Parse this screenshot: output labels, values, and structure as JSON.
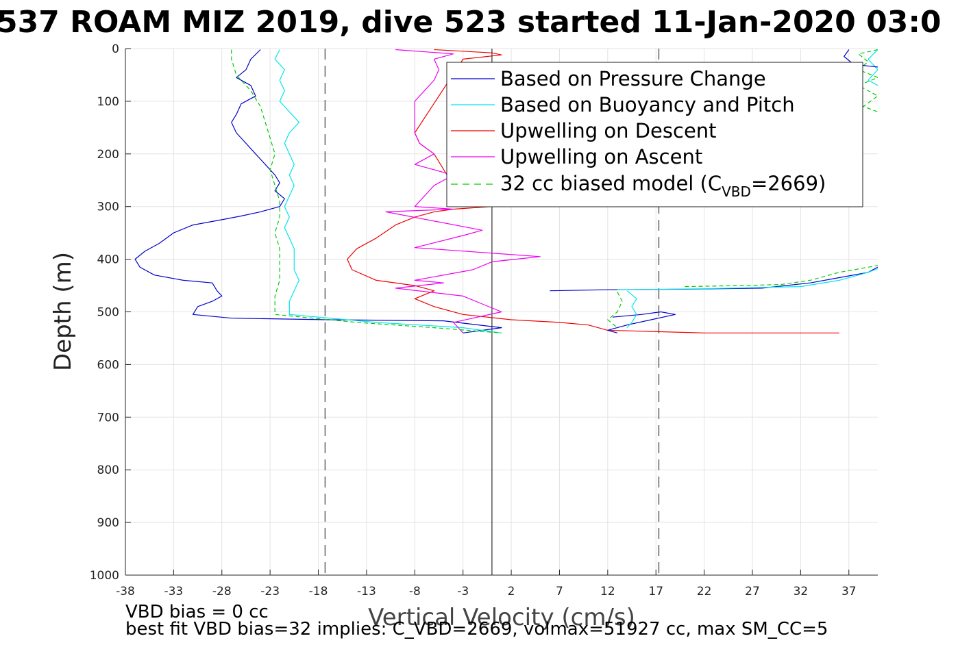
{
  "chart_data": {
    "type": "line",
    "title": "537 ROAM MIZ 2019, dive 523 started 11-Jan-2020 03:0",
    "xlabel": "Vertical Velocity (cm/s)",
    "ylabel": "Depth (m)",
    "xlim": [
      -38,
      40
    ],
    "ylim": [
      0,
      1000
    ],
    "y_reversed": true,
    "grid": true,
    "x_ticks": [
      -38,
      -33,
      -28,
      -23,
      -18,
      -13,
      -8,
      -3,
      2,
      7,
      12,
      17,
      22,
      27,
      32,
      37
    ],
    "y_ticks": [
      0,
      100,
      200,
      300,
      400,
      500,
      600,
      700,
      800,
      900,
      1000
    ],
    "reference_lines": {
      "dashed_x": [
        -17.3,
        17.3
      ],
      "solid_x": [
        0
      ]
    },
    "legend": {
      "position": "top-right",
      "entries": [
        {
          "label": "Based on Pressure Change",
          "color": "#0000cc",
          "style": "solid"
        },
        {
          "label": "Based on Buoyancy and Pitch",
          "color": "#00e5ee",
          "style": "solid"
        },
        {
          "label": "Upwelling on Descent",
          "color": "#ee0000",
          "style": "solid"
        },
        {
          "label": "Upwelling on Ascent",
          "color": "#ee00ee",
          "style": "solid"
        },
        {
          "label_main": "32 cc biased model (C",
          "label_sub": "VBD",
          "label_tail": "=2669)",
          "color": "#00cc00",
          "style": "dashed"
        }
      ]
    },
    "series": [
      {
        "name": "Based on Pressure Change",
        "color": "#0000cc",
        "points": [
          [
            -24,
            2
          ],
          [
            -25,
            20
          ],
          [
            -25.5,
            40
          ],
          [
            -26.5,
            55
          ],
          [
            -25,
            70
          ],
          [
            -24.5,
            90
          ],
          [
            -26,
            105
          ],
          [
            -26.5,
            125
          ],
          [
            -27,
            140
          ],
          [
            -26.5,
            160
          ],
          [
            -25.5,
            180
          ],
          [
            -24.5,
            200
          ],
          [
            -23.5,
            220
          ],
          [
            -22.5,
            240
          ],
          [
            -22,
            255
          ],
          [
            -22.5,
            270
          ],
          [
            -21.5,
            285
          ],
          [
            -22,
            300
          ],
          [
            -24,
            310
          ],
          [
            -26,
            318
          ],
          [
            -28,
            325
          ],
          [
            -31,
            335
          ],
          [
            -33,
            350
          ],
          [
            -34.5,
            370
          ],
          [
            -36,
            385
          ],
          [
            -37,
            400
          ],
          [
            -36.5,
            415
          ],
          [
            -35,
            430
          ],
          [
            -32,
            440
          ],
          [
            -29,
            445
          ],
          [
            -28.5,
            460
          ],
          [
            -28,
            470
          ],
          [
            -29,
            480
          ],
          [
            -30.5,
            490
          ],
          [
            -31,
            505
          ],
          [
            -27,
            512
          ],
          [
            -17,
            515
          ],
          [
            -5,
            517
          ],
          [
            1,
            530
          ],
          [
            -3,
            540
          ]
        ]
      },
      {
        "name": "Based on Buoyancy and Pitch",
        "color": "#00e5ee",
        "points": [
          [
            -22,
            2
          ],
          [
            -22.5,
            20
          ],
          [
            -21.5,
            40
          ],
          [
            -22,
            60
          ],
          [
            -21.5,
            80
          ],
          [
            -22,
            100
          ],
          [
            -21,
            120
          ],
          [
            -20,
            140
          ],
          [
            -21,
            160
          ],
          [
            -21.5,
            180
          ],
          [
            -21,
            200
          ],
          [
            -20.5,
            220
          ],
          [
            -21,
            240
          ],
          [
            -20.5,
            260
          ],
          [
            -21,
            280
          ],
          [
            -21.5,
            300
          ],
          [
            -21,
            320
          ],
          [
            -21.5,
            340
          ],
          [
            -21,
            360
          ],
          [
            -20.5,
            380
          ],
          [
            -20.5,
            400
          ],
          [
            -20.5,
            420
          ],
          [
            -20,
            440
          ],
          [
            -20.5,
            460
          ],
          [
            -21,
            480
          ],
          [
            -21,
            505
          ],
          [
            -12,
            520
          ],
          [
            -3,
            530
          ],
          [
            1,
            540
          ]
        ]
      },
      {
        "name": "Upwelling on Descent",
        "color": "#ee0000",
        "points": [
          [
            -6,
            2
          ],
          [
            0,
            8
          ],
          [
            1,
            12
          ],
          [
            -3,
            20
          ],
          [
            -8,
            160
          ],
          [
            -7.5,
            180
          ],
          [
            -6,
            200
          ],
          [
            -4,
            260
          ],
          [
            -2,
            285
          ],
          [
            0,
            300
          ],
          [
            -4,
            305
          ],
          [
            -6,
            310
          ],
          [
            -8,
            320
          ],
          [
            -10,
            335
          ],
          [
            -12,
            360
          ],
          [
            -14,
            380
          ],
          [
            -15,
            400
          ],
          [
            -14.5,
            420
          ],
          [
            -12,
            440
          ],
          [
            -8,
            450
          ],
          [
            -6,
            460
          ],
          [
            -8,
            475
          ],
          [
            -6,
            490
          ],
          [
            -3,
            505
          ],
          [
            2,
            515
          ],
          [
            7,
            520
          ],
          [
            10,
            525
          ],
          [
            12,
            535
          ],
          [
            22,
            540
          ],
          [
            36,
            540
          ]
        ]
      },
      {
        "name": "Upwelling on Ascent",
        "color": "#ee00ee",
        "points": [
          [
            -10,
            2
          ],
          [
            -4,
            10
          ],
          [
            -6,
            20
          ],
          [
            -5.5,
            40
          ],
          [
            -6,
            60
          ],
          [
            -8,
            100
          ],
          [
            -8,
            160
          ],
          [
            -7.5,
            180
          ],
          [
            -6,
            200
          ],
          [
            -8,
            220
          ],
          [
            -4,
            240
          ],
          [
            -6,
            260
          ],
          [
            -8,
            300
          ],
          [
            -4,
            305
          ],
          [
            -11,
            310
          ],
          [
            -1,
            345
          ],
          [
            -3,
            355
          ],
          [
            -8,
            378
          ],
          [
            5,
            395
          ],
          [
            0,
            405
          ],
          [
            -2,
            420
          ],
          [
            -8,
            440
          ],
          [
            -5,
            445
          ],
          [
            -10,
            455
          ],
          [
            -3,
            470
          ],
          [
            -1,
            485
          ],
          [
            1,
            500
          ],
          [
            -4,
            520
          ],
          [
            -3,
            540
          ]
        ]
      },
      {
        "name": "32 cc biased model (CVBD=2669)",
        "color": "#00cc00",
        "dashed": true,
        "points": [
          [
            -27,
            2
          ],
          [
            -27,
            20
          ],
          [
            -26.5,
            50
          ],
          [
            -25,
            80
          ],
          [
            -24,
            110
          ],
          [
            -23.5,
            140
          ],
          [
            -23,
            170
          ],
          [
            -22.5,
            200
          ],
          [
            -23,
            230
          ],
          [
            -22.5,
            260
          ],
          [
            -22,
            290
          ],
          [
            -22,
            320
          ],
          [
            -22.5,
            350
          ],
          [
            -22,
            380
          ],
          [
            -22,
            410
          ],
          [
            -22,
            440
          ],
          [
            -22.5,
            470
          ],
          [
            -22.5,
            505
          ],
          [
            -14,
            520
          ],
          [
            -6,
            530
          ],
          [
            1,
            540
          ]
        ]
      },
      {
        "name": "",
        "color": "#0000cc",
        "points": [
          [
            12.5,
            510
          ],
          [
            15.5,
            505
          ],
          [
            17.5,
            500
          ],
          [
            19,
            505
          ],
          [
            16.5,
            515
          ],
          [
            14,
            525
          ],
          [
            12,
            535
          ],
          [
            13,
            540
          ]
        ]
      },
      {
        "name": "",
        "color": "#0000cc",
        "points": [
          [
            6,
            460
          ],
          [
            12,
            458
          ],
          [
            20,
            457
          ],
          [
            28,
            455
          ],
          [
            33,
            445
          ],
          [
            36,
            435
          ],
          [
            39,
            425
          ],
          [
            40,
            415
          ]
        ]
      },
      {
        "name": "",
        "color": "#00e5ee",
        "points": [
          [
            14,
            460
          ],
          [
            15,
            475
          ],
          [
            14.5,
            490
          ],
          [
            15,
            505
          ],
          [
            14.5,
            520
          ],
          [
            14,
            530
          ]
        ]
      },
      {
        "name": "",
        "color": "#00e5ee",
        "points": [
          [
            13,
            458
          ],
          [
            22,
            456
          ],
          [
            32,
            452
          ],
          [
            36,
            440
          ],
          [
            39,
            425
          ],
          [
            40,
            418
          ]
        ]
      },
      {
        "name": "",
        "color": "#00cc00",
        "dashed": true,
        "points": [
          [
            13,
            462
          ],
          [
            13.5,
            480
          ],
          [
            13,
            500
          ],
          [
            12,
            515
          ],
          [
            13,
            530
          ]
        ]
      },
      {
        "name": "",
        "color": "#00cc00",
        "dashed": true,
        "points": [
          [
            20,
            452
          ],
          [
            26,
            450
          ],
          [
            30,
            448
          ],
          [
            33,
            440
          ],
          [
            36,
            425
          ],
          [
            40,
            412
          ]
        ]
      },
      {
        "name": "",
        "color": "#00cc00",
        "dashed": true,
        "points": [
          [
            40,
            2
          ],
          [
            38,
            10
          ],
          [
            39,
            25
          ],
          [
            38,
            40
          ],
          [
            40,
            55
          ],
          [
            38,
            70
          ],
          [
            40,
            90
          ],
          [
            38.5,
            110
          ],
          [
            40,
            120
          ]
        ]
      },
      {
        "name": "",
        "color": "#00e5ee",
        "points": [
          [
            40,
            2
          ],
          [
            39,
            20
          ],
          [
            40,
            40
          ],
          [
            39,
            60
          ],
          [
            40,
            70
          ]
        ]
      },
      {
        "name": "",
        "color": "#0000cc",
        "points": [
          [
            37,
            2
          ],
          [
            36.5,
            15
          ],
          [
            37.5,
            30
          ],
          [
            40,
            35
          ]
        ]
      }
    ]
  },
  "footnotes": {
    "line1": "VBD bias = 0 cc",
    "line2": "best fit VBD bias=32 implies: C_VBD=2669, volmax=51927 cc, max SM_CC=5"
  }
}
